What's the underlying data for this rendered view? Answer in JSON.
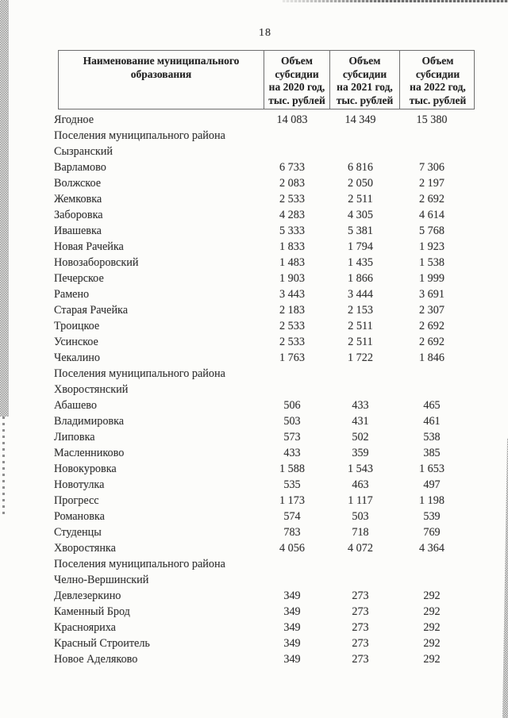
{
  "page": {
    "number": "18",
    "colors": {
      "paper": "#fcfcfa",
      "ink": "#343434",
      "border": "#6e6e6e"
    }
  },
  "table": {
    "header": {
      "name": "Наименование муниципального\nобразования",
      "y2020": "Объем\nсубсидии\nна 2020 год,\nтыс. рублей",
      "y2021": "Объем\nсубсидии\nна 2021 год,\nтыс. рублей",
      "y2022": "Объем\nсубсидии\nна 2022 год,\nтыс. рублей"
    },
    "rows": [
      {
        "name": "Ягодное",
        "v2020": "14 083",
        "v2021": "14 349",
        "v2022": "15 380"
      },
      {
        "name": "Поселения муниципального района",
        "v2020": "",
        "v2021": "",
        "v2022": ""
      },
      {
        "name": "Сызранский",
        "v2020": "",
        "v2021": "",
        "v2022": ""
      },
      {
        "name": "Варламово",
        "v2020": "6 733",
        "v2021": "6 816",
        "v2022": "7 306"
      },
      {
        "name": "Волжское",
        "v2020": "2 083",
        "v2021": "2 050",
        "v2022": "2 197"
      },
      {
        "name": "Жемковка",
        "v2020": "2 533",
        "v2021": "2 511",
        "v2022": "2 692"
      },
      {
        "name": "Заборовка",
        "v2020": "4 283",
        "v2021": "4 305",
        "v2022": "4 614"
      },
      {
        "name": "Ивашевка",
        "v2020": "5 333",
        "v2021": "5 381",
        "v2022": "5 768"
      },
      {
        "name": "Новая Рачейка",
        "v2020": "1 833",
        "v2021": "1 794",
        "v2022": "1 923"
      },
      {
        "name": "Новозаборовский",
        "v2020": "1 483",
        "v2021": "1 435",
        "v2022": "1 538"
      },
      {
        "name": "Печерское",
        "v2020": "1 903",
        "v2021": "1 866",
        "v2022": "1 999"
      },
      {
        "name": "Рамено",
        "v2020": "3 443",
        "v2021": "3 444",
        "v2022": "3 691"
      },
      {
        "name": "Старая Рачейка",
        "v2020": "2 183",
        "v2021": "2 153",
        "v2022": "2 307"
      },
      {
        "name": "Троицкое",
        "v2020": "2 533",
        "v2021": "2 511",
        "v2022": "2 692"
      },
      {
        "name": "Усинское",
        "v2020": "2 533",
        "v2021": "2 511",
        "v2022": "2 692"
      },
      {
        "name": "Чекалино",
        "v2020": "1 763",
        "v2021": "1 722",
        "v2022": "1 846"
      },
      {
        "name": "Поселения муниципального района",
        "v2020": "",
        "v2021": "",
        "v2022": ""
      },
      {
        "name": "Хворостянский",
        "v2020": "",
        "v2021": "",
        "v2022": ""
      },
      {
        "name": "Абашево",
        "v2020": "506",
        "v2021": "433",
        "v2022": "465"
      },
      {
        "name": "Владимировка",
        "v2020": "503",
        "v2021": "431",
        "v2022": "461"
      },
      {
        "name": "Липовка",
        "v2020": "573",
        "v2021": "502",
        "v2022": "538"
      },
      {
        "name": "Масленниково",
        "v2020": "433",
        "v2021": "359",
        "v2022": "385"
      },
      {
        "name": "Новокуровка",
        "v2020": "1 588",
        "v2021": "1 543",
        "v2022": "1 653"
      },
      {
        "name": "Новотулка",
        "v2020": "535",
        "v2021": "463",
        "v2022": "497"
      },
      {
        "name": "Прогресс",
        "v2020": "1 173",
        "v2021": "1 117",
        "v2022": "1 198"
      },
      {
        "name": "Романовка",
        "v2020": "574",
        "v2021": "503",
        "v2022": "539"
      },
      {
        "name": "Студенцы",
        "v2020": "783",
        "v2021": "718",
        "v2022": "769"
      },
      {
        "name": "Хворостянка",
        "v2020": "4 056",
        "v2021": "4 072",
        "v2022": "4 364"
      },
      {
        "name": "Поселения муниципального района",
        "v2020": "",
        "v2021": "",
        "v2022": ""
      },
      {
        "name": "Челно-Вершинский",
        "v2020": "",
        "v2021": "",
        "v2022": ""
      },
      {
        "name": "Девлезеркино",
        "v2020": "349",
        "v2021": "273",
        "v2022": "292"
      },
      {
        "name": "Каменный Брод",
        "v2020": "349",
        "v2021": "273",
        "v2022": "292"
      },
      {
        "name": "Краснояриха",
        "v2020": "349",
        "v2021": "273",
        "v2022": "292"
      },
      {
        "name": "Красный Строитель",
        "v2020": "349",
        "v2021": "273",
        "v2022": "292"
      },
      {
        "name": "Новое Аделяково",
        "v2020": "349",
        "v2021": "273",
        "v2022": "292"
      }
    ]
  }
}
